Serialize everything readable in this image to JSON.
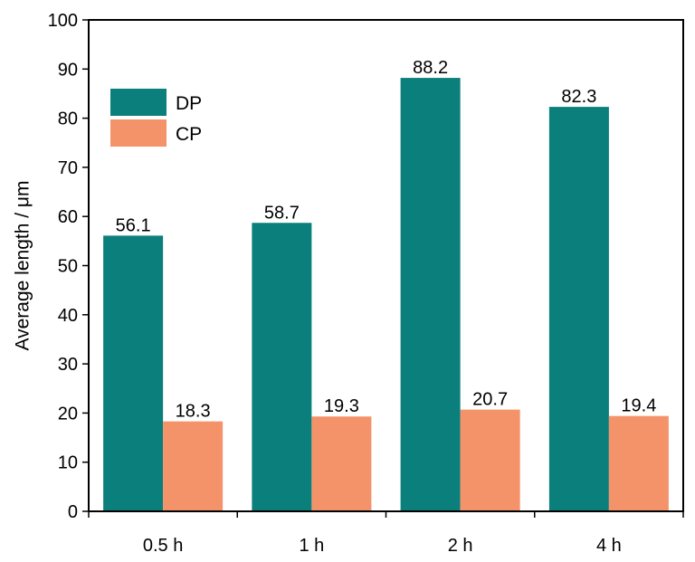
{
  "chart_data": {
    "type": "bar",
    "categories": [
      "0.5 h",
      "1 h",
      "2 h",
      "4 h"
    ],
    "series": [
      {
        "name": "DP",
        "values": [
          56.1,
          58.7,
          88.2,
          82.3
        ],
        "color": "#0a7f7b"
      },
      {
        "name": "CP",
        "values": [
          18.3,
          19.3,
          20.7,
          19.4
        ],
        "color": "#f4936a"
      }
    ],
    "data_labels": [
      [
        "56.1",
        "58.7",
        "88.2",
        "82.3"
      ],
      [
        "18.3",
        "19.3",
        "20.7",
        "19.4"
      ]
    ],
    "title": "",
    "xlabel": "",
    "ylabel": "Average length / μm",
    "ylim": [
      0,
      100
    ],
    "yticks": [
      0,
      10,
      20,
      30,
      40,
      50,
      60,
      70,
      80,
      90,
      100
    ],
    "ytick_labels": [
      "0",
      "10",
      "20",
      "30",
      "40",
      "50",
      "60",
      "70",
      "80",
      "90",
      "100"
    ],
    "grid": false,
    "legend_position": "top-left"
  }
}
